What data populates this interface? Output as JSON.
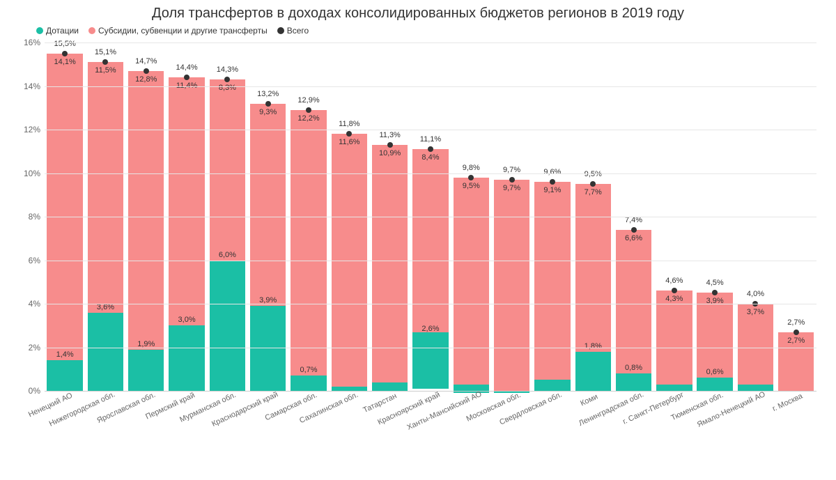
{
  "chart": {
    "type": "stacked-bar-with-marker",
    "title": "Доля трансфертов в доходах консолидированных бюджетов регионов в 2019 году",
    "legend": {
      "series1": {
        "label": "Дотации",
        "color": "#1bbfa5"
      },
      "series2": {
        "label": "Субсидии, субвенции и другие трансферты",
        "color": "#f78c8c"
      },
      "marker": {
        "label": "Всего",
        "color": "#333333"
      }
    },
    "y_axis": {
      "min": 0,
      "max": 16,
      "tick_step": 2,
      "suffix": "%",
      "grid_color": "#e6e6e6",
      "axis_color": "#cccccc",
      "label_fontsize": 12
    },
    "label_fontsize": 11,
    "marker_radius": 4,
    "dotation_label_threshold": 0.6,
    "background_color": "#ffffff",
    "categories": [
      {
        "name": "Ненецкий АО",
        "dotation": 1.4,
        "subsidy": 14.1,
        "total": 15.5
      },
      {
        "name": "Нижегородская обл.",
        "dotation": 3.6,
        "subsidy": 11.5,
        "total": 15.1
      },
      {
        "name": "Ярославская обл.",
        "dotation": 1.9,
        "subsidy": 12.8,
        "total": 14.7
      },
      {
        "name": "Пермский край",
        "dotation": 3.0,
        "subsidy": 11.4,
        "total": 14.4
      },
      {
        "name": "Мурманская обл.",
        "dotation": 6.0,
        "subsidy": 8.3,
        "total": 14.3
      },
      {
        "name": "Краснодарский край",
        "dotation": 3.9,
        "subsidy": 9.3,
        "total": 13.2
      },
      {
        "name": "Самарская обл.",
        "dotation": 0.7,
        "subsidy": 12.2,
        "total": 12.9
      },
      {
        "name": "Сахалинская обл.",
        "dotation": 0.2,
        "subsidy": 11.6,
        "total": 11.8
      },
      {
        "name": "Татарстан",
        "dotation": 0.4,
        "subsidy": 10.9,
        "total": 11.3
      },
      {
        "name": "Красноярский край",
        "dotation": 2.6,
        "subsidy": 8.4,
        "total": 11.1
      },
      {
        "name": "Ханты-Мансийский АО",
        "dotation": 0.4,
        "subsidy": 9.5,
        "total": 9.8
      },
      {
        "name": "Московская обл.",
        "dotation": 0.1,
        "subsidy": 9.7,
        "total": 9.7
      },
      {
        "name": "Свердловская обл.",
        "dotation": 0.5,
        "subsidy": 9.1,
        "total": 9.6
      },
      {
        "name": "Коми",
        "dotation": 1.8,
        "subsidy": 7.7,
        "total": 9.5
      },
      {
        "name": "Ленинградская обл.",
        "dotation": 0.8,
        "subsidy": 6.6,
        "total": 7.4
      },
      {
        "name": "г. Санкт-Петербург",
        "dotation": 0.3,
        "subsidy": 4.3,
        "total": 4.6
      },
      {
        "name": "Тюменская обл.",
        "dotation": 0.6,
        "subsidy": 3.9,
        "total": 4.5
      },
      {
        "name": "Ямало-Ненецкий АО",
        "dotation": 0.3,
        "subsidy": 3.7,
        "total": 4.0
      },
      {
        "name": "г. Москва",
        "dotation": 0.0,
        "subsidy": 2.7,
        "total": 2.7
      }
    ]
  }
}
